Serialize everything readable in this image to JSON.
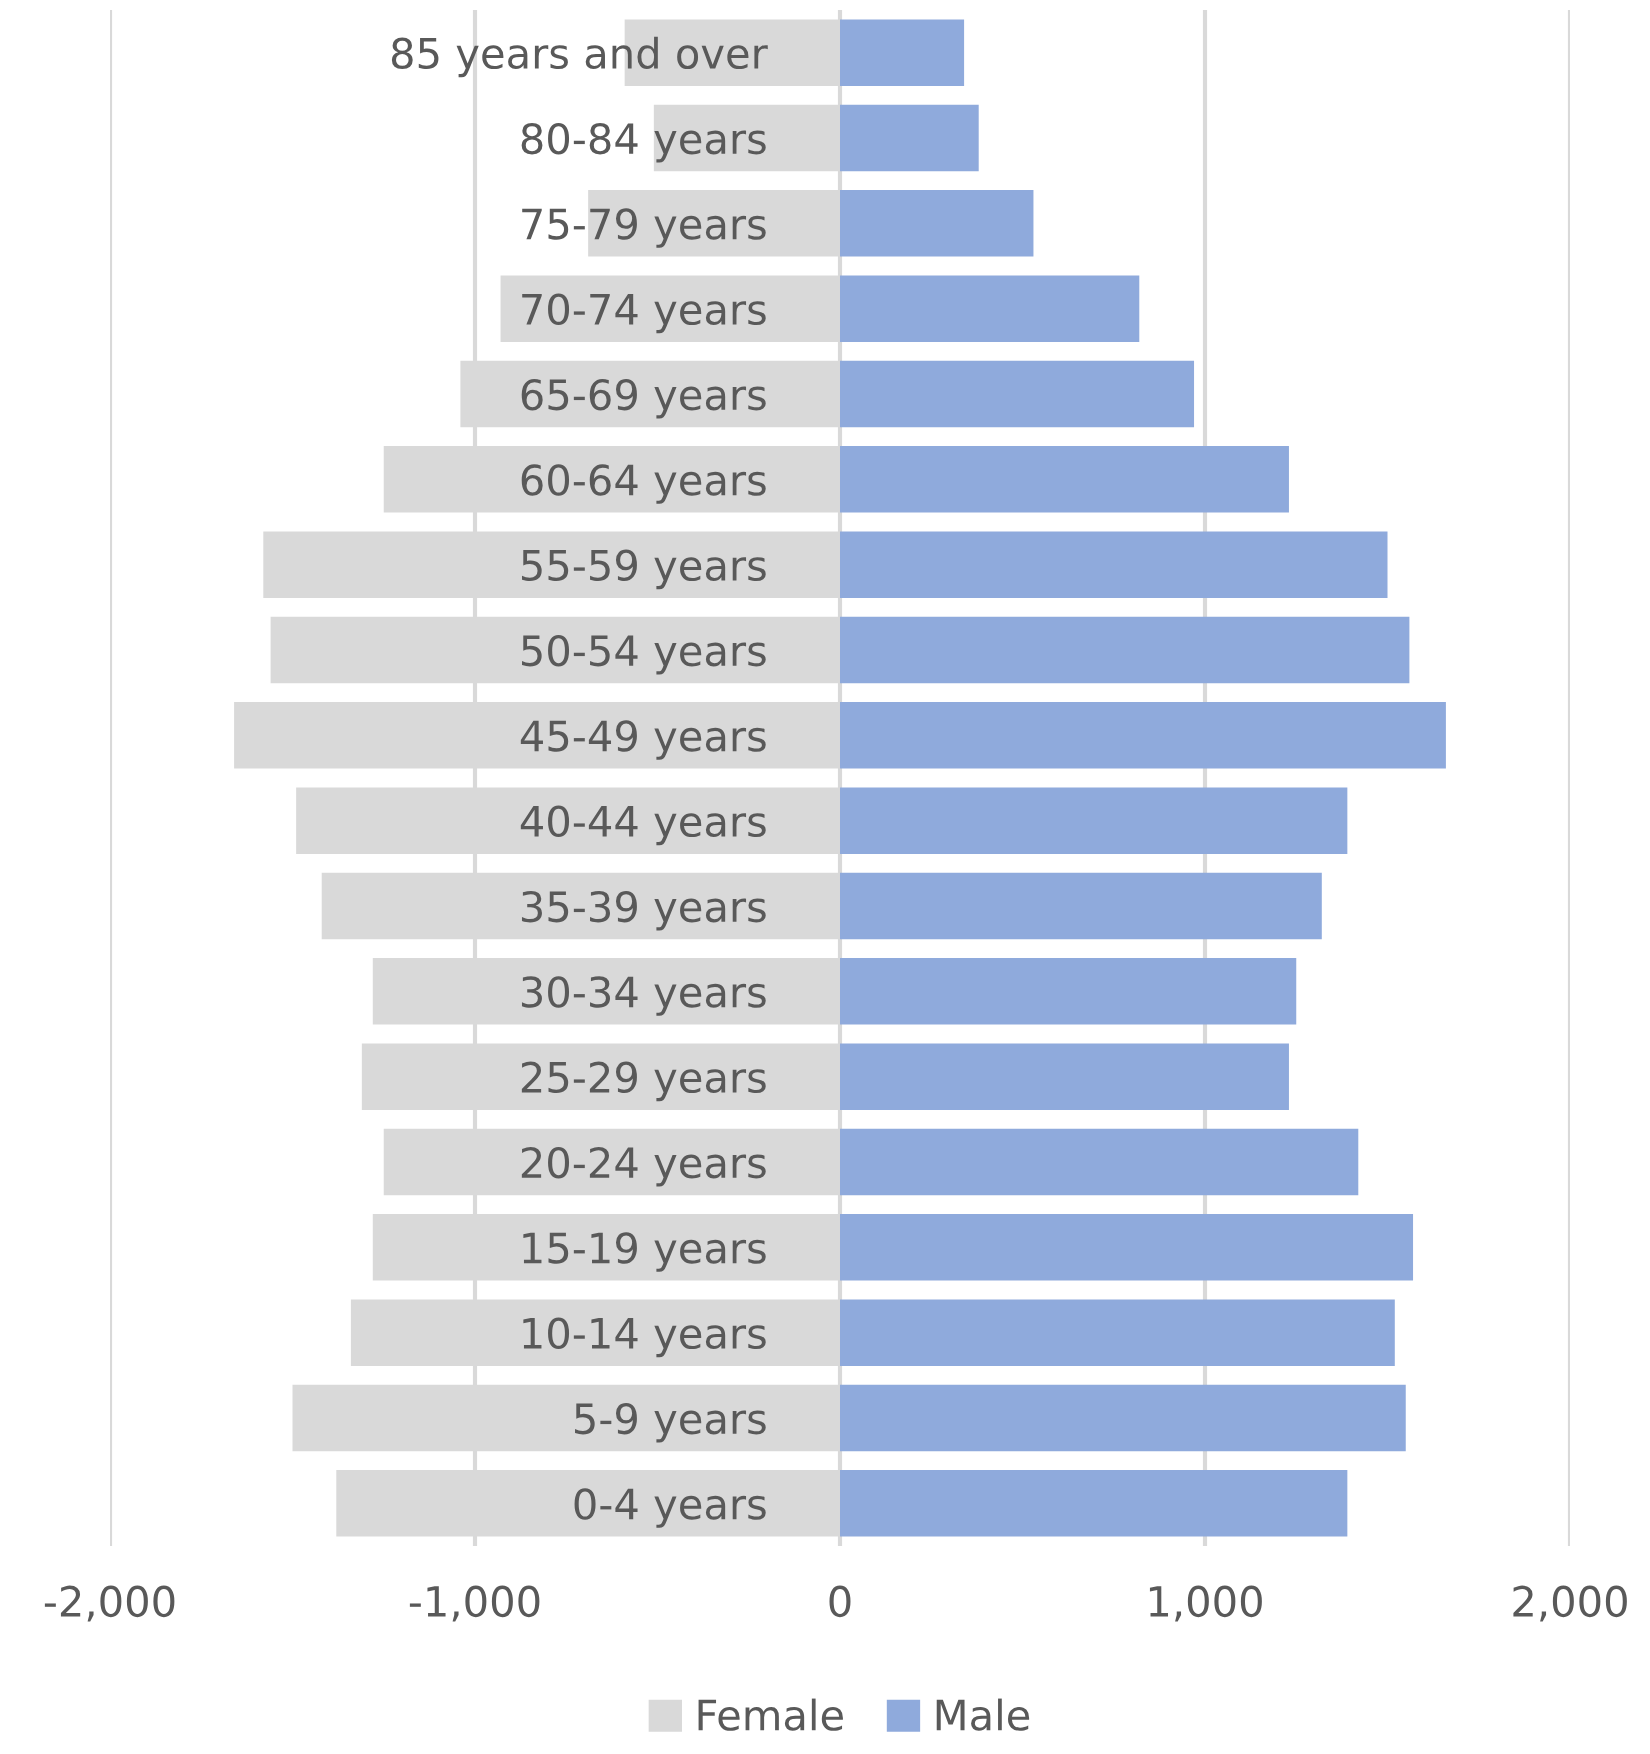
{
  "chart_data": {
    "type": "bar",
    "orientation": "horizontal",
    "stacked": true,
    "categories": [
      "85 years and over",
      "80-84 years",
      "75-79 years",
      "70-74 years",
      "65-69 years",
      "60-64 years",
      "55-59 years",
      "50-54 years",
      "45-49 years",
      "40-44 years",
      "35-39 years",
      "30-34 years",
      "25-29 years",
      "20-24 years",
      "15-19 years",
      "10-14 years",
      "5-9 years",
      "0-4 years"
    ],
    "series": [
      {
        "name": "Female",
        "color": "#d9d9d9",
        "values": [
          -590,
          -510,
          -690,
          -930,
          -1040,
          -1250,
          -1580,
          -1560,
          -1660,
          -1490,
          -1420,
          -1280,
          -1310,
          -1250,
          -1280,
          -1340,
          -1500,
          -1380
        ]
      },
      {
        "name": "Male",
        "color": "#8faadc",
        "values": [
          340,
          380,
          530,
          820,
          970,
          1230,
          1500,
          1560,
          1660,
          1390,
          1320,
          1250,
          1230,
          1420,
          1570,
          1520,
          1550,
          1390
        ]
      }
    ],
    "xlim": [
      -2000,
      2000
    ],
    "xticks": [
      {
        "value": -2000,
        "label": "-2,000"
      },
      {
        "value": -1000,
        "label": "-1,000"
      },
      0,
      {
        "value": 1000,
        "label": "1,000"
      },
      {
        "value": 2000,
        "label": "2,000"
      }
    ],
    "grid": "x",
    "legend": "bottom"
  }
}
